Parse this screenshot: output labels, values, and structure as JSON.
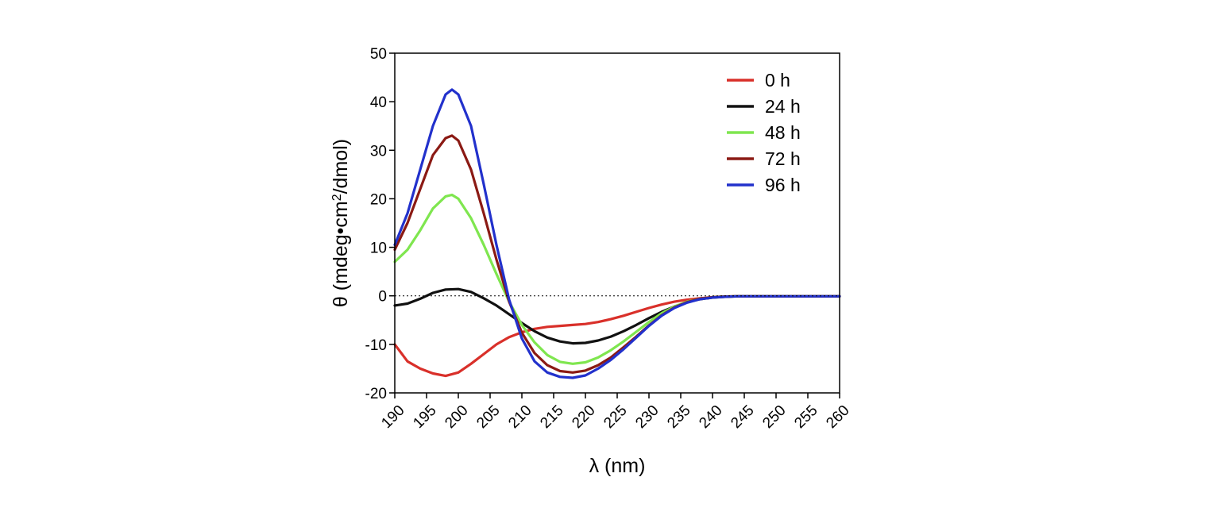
{
  "chart_data": {
    "type": "line",
    "title": "",
    "xlabel": "λ (nm)",
    "ylabel_main": "θ (mdeg•cm",
    "ylabel_sup": "2",
    "ylabel_tail": "/dmol)",
    "xlim": [
      190,
      260
    ],
    "ylim": [
      -20,
      50
    ],
    "xticks": [
      "190",
      "195",
      "200",
      "205",
      "210",
      "215",
      "220",
      "225",
      "230",
      "235",
      "240",
      "245",
      "250",
      "255",
      "260"
    ],
    "yticks": [
      "50",
      "40",
      "30",
      "20",
      "10",
      "0",
      "-10",
      "-20"
    ],
    "zero_line": "dotted",
    "grid": false,
    "legend_position": "top-right",
    "series": [
      {
        "name": "0 h",
        "color": "#d9302a",
        "x": [
          190,
          192,
          194,
          196,
          198,
          200,
          202,
          204,
          206,
          208,
          210,
          212,
          214,
          216,
          218,
          220,
          222,
          224,
          226,
          228,
          230,
          232,
          234,
          236,
          238,
          240,
          242,
          244,
          246,
          248,
          250,
          255,
          260
        ],
        "y": [
          -10,
          -13.5,
          -15,
          -16,
          -16.5,
          -15.8,
          -14,
          -12,
          -10,
          -8.5,
          -7.5,
          -6.8,
          -6.4,
          -6.2,
          -6.0,
          -5.8,
          -5.4,
          -4.8,
          -4.1,
          -3.3,
          -2.5,
          -1.8,
          -1.2,
          -0.8,
          -0.5,
          -0.3,
          -0.15,
          -0.1,
          -0.1,
          -0.1,
          -0.1,
          -0.1,
          -0.1
        ]
      },
      {
        "name": "24 h",
        "color": "#111111",
        "x": [
          190,
          192,
          194,
          196,
          198,
          200,
          202,
          204,
          206,
          208,
          210,
          212,
          214,
          216,
          218,
          220,
          222,
          224,
          226,
          228,
          230,
          232,
          234,
          236,
          238,
          240,
          242,
          244,
          246,
          248,
          250,
          255,
          260
        ],
        "y": [
          -2,
          -1.6,
          -0.6,
          0.6,
          1.3,
          1.4,
          0.8,
          -0.5,
          -2,
          -3.8,
          -5.6,
          -7.3,
          -8.6,
          -9.4,
          -9.8,
          -9.7,
          -9.2,
          -8.4,
          -7.3,
          -6.0,
          -4.6,
          -3.3,
          -2.2,
          -1.3,
          -0.7,
          -0.35,
          -0.2,
          -0.1,
          -0.1,
          -0.1,
          -0.1,
          -0.1,
          -0.1
        ]
      },
      {
        "name": "48 h",
        "color": "#7fe64f",
        "x": [
          190,
          192,
          194,
          196,
          198,
          199,
          200,
          202,
          204,
          206,
          208,
          210,
          212,
          214,
          216,
          218,
          220,
          222,
          224,
          226,
          228,
          230,
          232,
          234,
          236,
          238,
          240,
          242,
          244,
          246,
          248,
          250,
          255,
          260
        ],
        "y": [
          7,
          9.5,
          13.5,
          18,
          20.5,
          20.8,
          20,
          16,
          10.5,
          4.5,
          -1.2,
          -6,
          -9.6,
          -12.2,
          -13.6,
          -14,
          -13.7,
          -12.7,
          -11.2,
          -9.4,
          -7.4,
          -5.4,
          -3.6,
          -2.2,
          -1.2,
          -0.6,
          -0.3,
          -0.15,
          -0.1,
          -0.1,
          -0.1,
          -0.1,
          -0.1,
          -0.1
        ]
      },
      {
        "name": "72 h",
        "color": "#8b1a14",
        "x": [
          190,
          192,
          194,
          196,
          198,
          199,
          200,
          202,
          204,
          206,
          208,
          210,
          212,
          214,
          216,
          218,
          220,
          222,
          224,
          226,
          228,
          230,
          232,
          234,
          236,
          238,
          240,
          242,
          244,
          246,
          248,
          250,
          255,
          260
        ],
        "y": [
          9.5,
          15,
          22,
          29,
          32.5,
          33,
          32,
          26,
          17,
          7.5,
          -1.2,
          -7.6,
          -11.8,
          -14.3,
          -15.5,
          -15.8,
          -15.4,
          -14.3,
          -12.7,
          -10.6,
          -8.4,
          -6.1,
          -4.0,
          -2.4,
          -1.3,
          -0.6,
          -0.3,
          -0.15,
          -0.1,
          -0.1,
          -0.1,
          -0.1,
          -0.1,
          -0.1
        ]
      },
      {
        "name": "96 h",
        "color": "#2231cc",
        "x": [
          190,
          192,
          194,
          196,
          198,
          199,
          200,
          202,
          204,
          206,
          208,
          210,
          212,
          214,
          216,
          218,
          220,
          222,
          224,
          226,
          228,
          230,
          232,
          234,
          236,
          238,
          240,
          242,
          244,
          246,
          248,
          250,
          255,
          260
        ],
        "y": [
          10.5,
          17,
          26,
          35,
          41.5,
          42.5,
          41.5,
          35,
          23,
          10.5,
          -0.8,
          -8.8,
          -13.5,
          -15.8,
          -16.7,
          -16.9,
          -16.4,
          -15.0,
          -13.2,
          -11.0,
          -8.6,
          -6.2,
          -4.1,
          -2.5,
          -1.4,
          -0.7,
          -0.35,
          -0.2,
          -0.1,
          -0.1,
          -0.1,
          -0.1,
          -0.1,
          -0.1
        ]
      }
    ]
  }
}
